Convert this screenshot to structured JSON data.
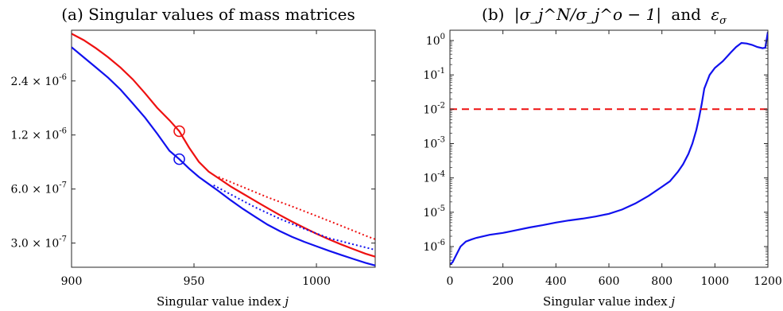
{
  "chart_data": [
    {
      "type": "line",
      "title": "(a) Singular values of mass matrices",
      "xlabel": "Singular value index j",
      "ylabel": "",
      "xlim": [
        900,
        1024
      ],
      "ylim": [
        2.2e-07,
        4.6e-06
      ],
      "yscale": "log",
      "grid": false,
      "x_ticks": [
        900,
        950,
        1000
      ],
      "x_tick_labels": [
        "900",
        "950",
        "1000"
      ],
      "y_ticks": [
        3e-07,
        6e-07,
        1.2e-06,
        2.4e-06
      ],
      "y_tick_labels": [
        "3.0 × 10⁻⁷",
        "6.0 × 10⁻⁷",
        "1.2 × 10⁻⁶",
        "2.4 × 10⁻⁶"
      ],
      "series": [
        {
          "color": "#ee1111",
          "style": "solid",
          "x": [
            900,
            905,
            910,
            915,
            920,
            925,
            930,
            935,
            940,
            944,
            948,
            952,
            956,
            960,
            965,
            970,
            975,
            980,
            985,
            990,
            995,
            1000,
            1005,
            1010,
            1015,
            1020,
            1024
          ],
          "y": [
            4.4e-06,
            4.05e-06,
            3.65e-06,
            3.25e-06,
            2.85e-06,
            2.45e-06,
            2.05e-06,
            1.7e-06,
            1.45e-06,
            1.26e-06,
            1.02e-06,
            8.5e-07,
            7.5e-07,
            6.9e-07,
            6.2e-07,
            5.65e-07,
            5.15e-07,
            4.7e-07,
            4.3e-07,
            3.95e-07,
            3.65e-07,
            3.38e-07,
            3.15e-07,
            2.95e-07,
            2.78e-07,
            2.62e-07,
            2.52e-07
          ]
        },
        {
          "color": "#ee1111",
          "style": "dotted",
          "x": [
            960,
            970,
            980,
            990,
            1000,
            1010,
            1020,
            1024
          ],
          "y": [
            7e-07,
            6.15e-07,
            5.4e-07,
            4.8e-07,
            4.25e-07,
            3.75e-07,
            3.3e-07,
            3.15e-07
          ]
        },
        {
          "color": "#1111ee",
          "style": "solid",
          "x": [
            900,
            905,
            910,
            915,
            920,
            925,
            930,
            935,
            940,
            944,
            948,
            952,
            956,
            960,
            965,
            970,
            975,
            980,
            985,
            990,
            995,
            1000,
            1005,
            1010,
            1015,
            1020,
            1024
          ],
          "y": [
            3.7e-06,
            3.25e-06,
            2.85e-06,
            2.5e-06,
            2.15e-06,
            1.8e-06,
            1.5e-06,
            1.22e-06,
            9.8e-07,
            8.8e-07,
            7.8e-07,
            7e-07,
            6.4e-07,
            5.85e-07,
            5.2e-07,
            4.65e-07,
            4.2e-07,
            3.8e-07,
            3.5e-07,
            3.25e-07,
            3.05e-07,
            2.88e-07,
            2.72e-07,
            2.58e-07,
            2.45e-07,
            2.33e-07,
            2.25e-07
          ]
        },
        {
          "color": "#1111ee",
          "style": "dotted",
          "x": [
            958,
            965,
            975,
            985,
            995,
            1005,
            1015,
            1024
          ],
          "y": [
            6.3e-07,
            5.6e-07,
            4.75e-07,
            4.1e-07,
            3.6e-07,
            3.2e-07,
            2.95e-07,
            2.75e-07
          ]
        }
      ],
      "markers": [
        {
          "shape": "circle",
          "color": "#ee1111",
          "x": 944,
          "y": 1.26e-06
        },
        {
          "shape": "circle",
          "color": "#1111ee",
          "x": 944,
          "y": 8.8e-07
        }
      ]
    },
    {
      "type": "line",
      "title_prefix": "(b)",
      "title_math": "|σ_j^N/σ_j^o − 1|",
      "title_joiner": "and",
      "title_eps": "ε",
      "title_eps_sub": "σ",
      "xlabel": "Singular value index j",
      "ylabel": "",
      "xlim": [
        0,
        1200
      ],
      "ylim": [
        2.5e-07,
        2.0
      ],
      "yscale": "log",
      "grid": false,
      "x_ticks": [
        0,
        200,
        400,
        600,
        800,
        1000,
        1200
      ],
      "x_tick_labels": [
        "0",
        "200",
        "400",
        "600",
        "800",
        "1000",
        "1200"
      ],
      "y_ticks": [
        1e-06,
        1e-05,
        0.0001,
        0.001,
        0.01,
        0.1,
        1
      ],
      "y_tick_labels": [
        [
          "10",
          "-6"
        ],
        [
          "10",
          "-5"
        ],
        [
          "10",
          "-4"
        ],
        [
          "10",
          "-3"
        ],
        [
          "10",
          "-2"
        ],
        [
          "10",
          "-1"
        ],
        [
          "10",
          "0"
        ]
      ],
      "series": [
        {
          "color": "#1111ee",
          "style": "solid",
          "x": [
            0,
            10,
            20,
            40,
            60,
            80,
            100,
            150,
            200,
            250,
            300,
            350,
            400,
            450,
            500,
            550,
            600,
            650,
            700,
            750,
            800,
            830,
            860,
            880,
            900,
            915,
            930,
            940,
            950,
            960,
            980,
            1000,
            1030,
            1060,
            1080,
            1100,
            1120,
            1140,
            1160,
            1180,
            1190,
            1200
          ],
          "y": [
            3e-07,
            3.5e-07,
            5e-07,
            1e-06,
            1.4e-06,
            1.6e-06,
            1.8e-06,
            2.2e-06,
            2.5e-06,
            3e-06,
            3.6e-06,
            4.2e-06,
            5e-06,
            5.8e-06,
            6.5e-06,
            7.5e-06,
            9e-06,
            1.2e-05,
            1.8e-05,
            3e-05,
            5.5e-05,
            8e-05,
            0.00015,
            0.00025,
            0.0005,
            0.001,
            0.0025,
            0.0055,
            0.014,
            0.04,
            0.1,
            0.16,
            0.25,
            0.45,
            0.65,
            0.85,
            0.82,
            0.75,
            0.65,
            0.6,
            0.62,
            1.8
          ]
        },
        {
          "color": "#ee1111",
          "style": "dashed",
          "x": [
            0,
            1200
          ],
          "y": [
            0.01,
            0.01
          ]
        }
      ]
    }
  ]
}
